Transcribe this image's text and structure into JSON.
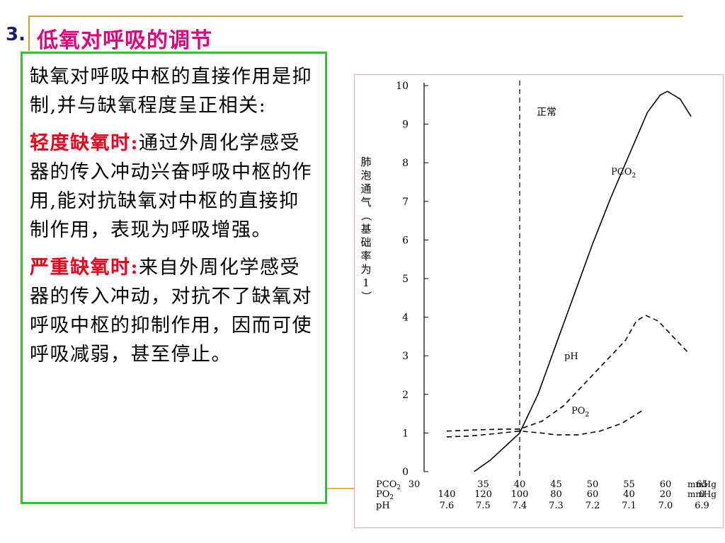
{
  "slide": {
    "section_number": "3.",
    "title": "低氧对呼吸的调节",
    "colors": {
      "title": "#e0007a",
      "number": "#1a1a6e",
      "highlight": "#e8001c",
      "border": "#22cc22",
      "rule": "#c8a040"
    }
  },
  "textbox": {
    "p1": "缺氧对呼吸中枢的直接作用是抑制,并与缺氧程度呈正相关:",
    "p2_label": "轻度缺氧时:",
    "p2_text": "通过外周化学感受器的传入冲动兴奋呼吸中枢的作用,能对抗缺氧对中枢的直接抑制作用，表现为呼吸增强。",
    "p3_label": "严重缺氧时:",
    "p3_text": "来自外周化学感受器的传入冲动，对抗不了缺氧对呼吸中枢的抑制作用，因而可使呼吸减弱，甚至停止。"
  },
  "chart_data": {
    "type": "line",
    "ylabel": "肺泡通气（基础率为1）",
    "ylim": [
      0,
      10
    ],
    "yticks": [
      "0",
      "1",
      "2",
      "3",
      "4",
      "5",
      "6",
      "7",
      "8",
      "9",
      "10"
    ],
    "x_index": [
      0,
      1,
      2,
      3,
      4,
      5,
      6,
      7
    ],
    "x_axes": [
      {
        "name": "PCO2",
        "ticks": [
          "30",
          "35",
          "40",
          "45",
          "50",
          "55",
          "60",
          "65"
        ],
        "unit": "mmHg"
      },
      {
        "name": "PO2",
        "ticks": [
          "140",
          "120",
          "100",
          "80",
          "60",
          "40",
          "20",
          "0"
        ],
        "unit": "mmHg"
      },
      {
        "name": "pH",
        "ticks": [
          "7.6",
          "7.5",
          "7.4",
          "7.3",
          "7.2",
          "7.1",
          "7.0",
          "6.9"
        ],
        "unit": ""
      }
    ],
    "normal_line": {
      "x": 2,
      "label": "正常"
    },
    "series": [
      {
        "name": "PCO2",
        "style": "solid",
        "points": [
          [
            0.75,
            0
          ],
          [
            1.2,
            0.3
          ],
          [
            1.6,
            0.65
          ],
          [
            2.0,
            1.0
          ],
          [
            2.5,
            2.0
          ],
          [
            3.0,
            3.3
          ],
          [
            3.5,
            4.6
          ],
          [
            4.0,
            5.9
          ],
          [
            4.5,
            7.1
          ],
          [
            5.0,
            8.2
          ],
          [
            5.5,
            9.3
          ],
          [
            5.85,
            9.75
          ],
          [
            6.05,
            9.85
          ],
          [
            6.4,
            9.65
          ],
          [
            6.7,
            9.2
          ]
        ]
      },
      {
        "name": "PO2",
        "style": "dashed",
        "points": [
          [
            0,
            0.9
          ],
          [
            0.6,
            0.92
          ],
          [
            1.2,
            0.97
          ],
          [
            2.0,
            1.05
          ],
          [
            2.6,
            1.0
          ],
          [
            3.0,
            0.95
          ],
          [
            3.6,
            0.95
          ],
          [
            4.2,
            1.05
          ],
          [
            4.8,
            1.25
          ],
          [
            5.4,
            1.6
          ]
        ]
      },
      {
        "name": "pH",
        "style": "dashed",
        "points": [
          [
            0,
            1.05
          ],
          [
            0.8,
            1.08
          ],
          [
            1.6,
            1.1
          ],
          [
            2.0,
            1.1
          ],
          [
            2.6,
            1.3
          ],
          [
            3.2,
            1.7
          ],
          [
            3.8,
            2.3
          ],
          [
            4.4,
            2.9
          ],
          [
            4.9,
            3.4
          ],
          [
            5.2,
            3.9
          ],
          [
            5.45,
            4.05
          ],
          [
            5.8,
            3.9
          ],
          [
            6.2,
            3.5
          ],
          [
            6.6,
            3.1
          ]
        ]
      }
    ]
  }
}
